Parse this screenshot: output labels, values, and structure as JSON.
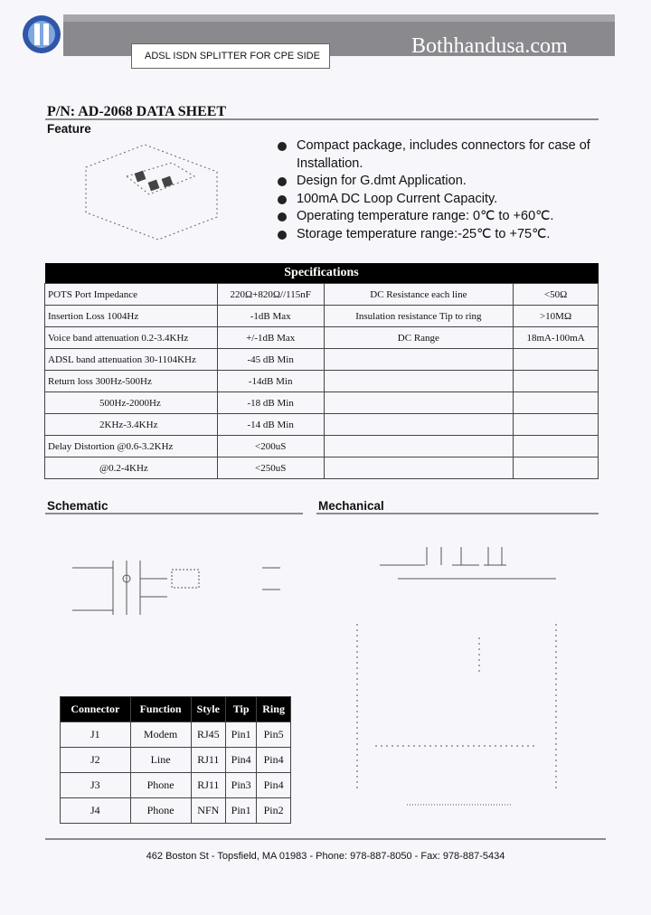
{
  "header": {
    "subtitle": "ADSL ISDN SPLITTER FOR CPE SIDE",
    "brand": "Bothhandusa.com"
  },
  "title": "P/N: AD-2068 DATA SHEET",
  "feature": {
    "heading": "Feature",
    "items": [
      "Compact package, includes connectors for case of Installation.",
      "Design for G.dmt Application.",
      "100mA DC Loop Current Capacity.",
      "Operating temperature range: 0℃ to +60℃.",
      "Storage temperature range:-25℃ to +75℃."
    ]
  },
  "specifications": {
    "heading": "Specifications",
    "rows": [
      [
        "POTS Port Impedance",
        "220Ω+820Ω//115nF",
        "DC Resistance each line",
        "<50Ω"
      ],
      [
        "Insertion Loss 1004Hz",
        "-1dB Max",
        "Insulation resistance Tip to ring",
        ">10MΩ"
      ],
      [
        "Voice band attenuation 0.2-3.4KHz",
        "+/-1dB Max",
        "DC Range",
        "18mA-100mA"
      ],
      [
        "ADSL band attenuation 30-1104KHz",
        "-45 dB Min"
      ],
      [
        "Return loss 300Hz-500Hz",
        "-14dB Min"
      ],
      [
        "500Hz-2000Hz",
        "-18 dB Min"
      ],
      [
        "2KHz-3.4KHz",
        "-14 dB Min"
      ],
      [
        "Delay Distortion @0.6-3.2KHz",
        "<200uS"
      ],
      [
        "@0.2-4KHz",
        "<250uS"
      ]
    ]
  },
  "schematic": {
    "heading": "Schematic"
  },
  "mechanical": {
    "heading": "Mechanical"
  },
  "connector_table": {
    "columns": [
      "Connector",
      "Function",
      "Style",
      "Tip",
      "Ring"
    ],
    "rows": [
      [
        "J1",
        "Modem",
        "RJ45",
        "Pin1",
        "Pin5"
      ],
      [
        "J2",
        "Line",
        "RJ11",
        "Pin4",
        "Pin4"
      ],
      [
        "J3",
        "Phone",
        "RJ11",
        "Pin3",
        "Pin4"
      ],
      [
        "J4",
        "Phone",
        "NFN",
        "Pin1",
        "Pin2"
      ]
    ]
  },
  "footer": "462 Boston St - Topsfield, MA 01983 - Phone: 978-887-8050 - Fax: 978-887-5434"
}
